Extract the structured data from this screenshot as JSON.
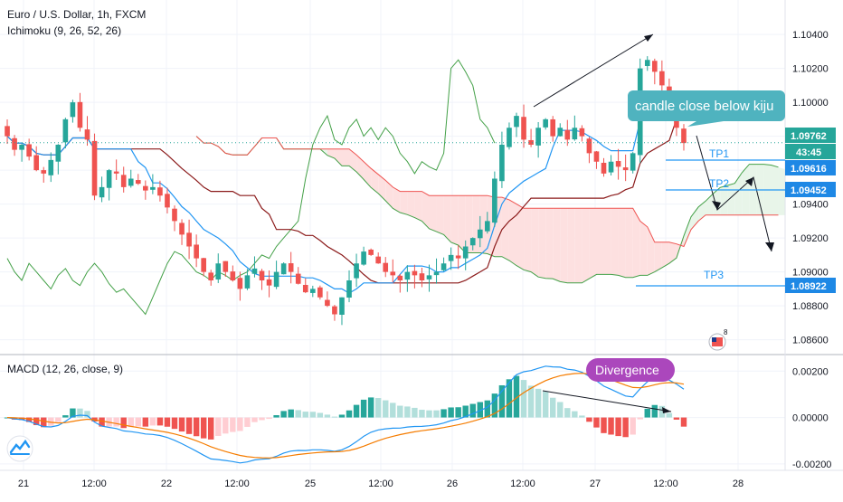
{
  "header": {
    "symbol_title": "Euro / U.S. Dollar, 1h, FXCM",
    "ichimoku_label": "Ichimoku (9, 26, 52, 26)",
    "macd_label": "MACD (12, 26, close, 9)"
  },
  "colors": {
    "up": "#26a69a",
    "down": "#ef5350",
    "conversion": "#2196f3",
    "base": "#8b1a1a",
    "lagging": "#43a047",
    "cloud_bull": "#e8f5e9",
    "cloud_bear": "#fde0e0",
    "lead_a": "#43a047",
    "lead_b": "#ef5350",
    "macd_line": "#2196f3",
    "signal_line": "#f57c00",
    "callout_bg": "#4fb3bf",
    "divergence_bg": "#ab47bc",
    "price_label": "#26a69a",
    "tp_label": "#1e88e5"
  },
  "chart_data": [
    {
      "type": "candlestick",
      "title": "Euro / U.S. Dollar, 1h, FXCM",
      "indicator": "Ichimoku (9, 26, 52, 26)",
      "ylim": [
        1.0855,
        1.1055
      ],
      "y_ticks": [
        "1.10400",
        "1.10200",
        "1.10000",
        "1.09800",
        "1.09600",
        "1.09400",
        "1.09200",
        "1.09000",
        "1.08800",
        "1.08600"
      ],
      "x_ticks": [
        "21",
        "12:00",
        "22",
        "12:00",
        "25",
        "12:00",
        "26",
        "12:00",
        "27",
        "12:00",
        "28"
      ],
      "price_labels": {
        "last_price": "1.09762",
        "countdown": "43:45",
        "tp1_price": "1.09616",
        "tp2_price": "1.09452",
        "tp3_price": "1.08922"
      },
      "targets": [
        {
          "label": "TP1",
          "price": 1.09616
        },
        {
          "label": "TP2",
          "price": 1.09452
        },
        {
          "label": "TP3",
          "price": 1.08922
        }
      ],
      "annotations": {
        "callout": "candle close below kiju"
      },
      "close_path": [
        1.098,
        1.0972,
        1.0975,
        1.0968,
        1.096,
        1.0958,
        1.0966,
        1.0975,
        1.099,
        1.1,
        1.0985,
        1.0978,
        1.0945,
        1.095,
        1.096,
        1.0958,
        1.095,
        1.0955,
        1.0952,
        1.0948,
        1.095,
        1.0945,
        1.0938,
        1.093,
        1.0922,
        1.0915,
        1.0908,
        1.09,
        1.0895,
        1.0905,
        1.09,
        1.0895,
        1.089,
        1.0898,
        1.0902,
        1.0895,
        1.0892,
        1.09,
        1.0905,
        1.09,
        1.0893,
        1.0888,
        1.089,
        1.0885,
        1.088,
        1.0875,
        1.0885,
        1.0895,
        1.0905,
        1.0912,
        1.091,
        1.0905,
        1.09,
        1.0898,
        1.0895,
        1.09,
        1.0898,
        1.0895,
        1.0898,
        1.09,
        1.0905,
        1.091,
        1.0908,
        1.0915,
        1.092,
        1.0925,
        1.093,
        1.0955,
        1.0975,
        1.0985,
        1.0992,
        1.0978,
        1.0975,
        1.0985,
        1.099,
        1.098,
        1.0985,
        1.0978,
        1.0985,
        1.098,
        1.097,
        1.0965,
        1.0958,
        1.0965,
        1.0962,
        1.096,
        1.097,
        1.102,
        1.1025,
        1.1018,
        1.101,
        1.099,
        1.0985,
        1.0976
      ]
    },
    {
      "type": "macd",
      "title": "MACD (12, 26, close, 9)",
      "ylim": [
        -0.0022,
        0.0024
      ],
      "y_ticks": [
        "0.00200",
        "0.00000",
        "-0.00200"
      ],
      "annotations": {
        "divergence": "Divergence"
      }
    }
  ]
}
